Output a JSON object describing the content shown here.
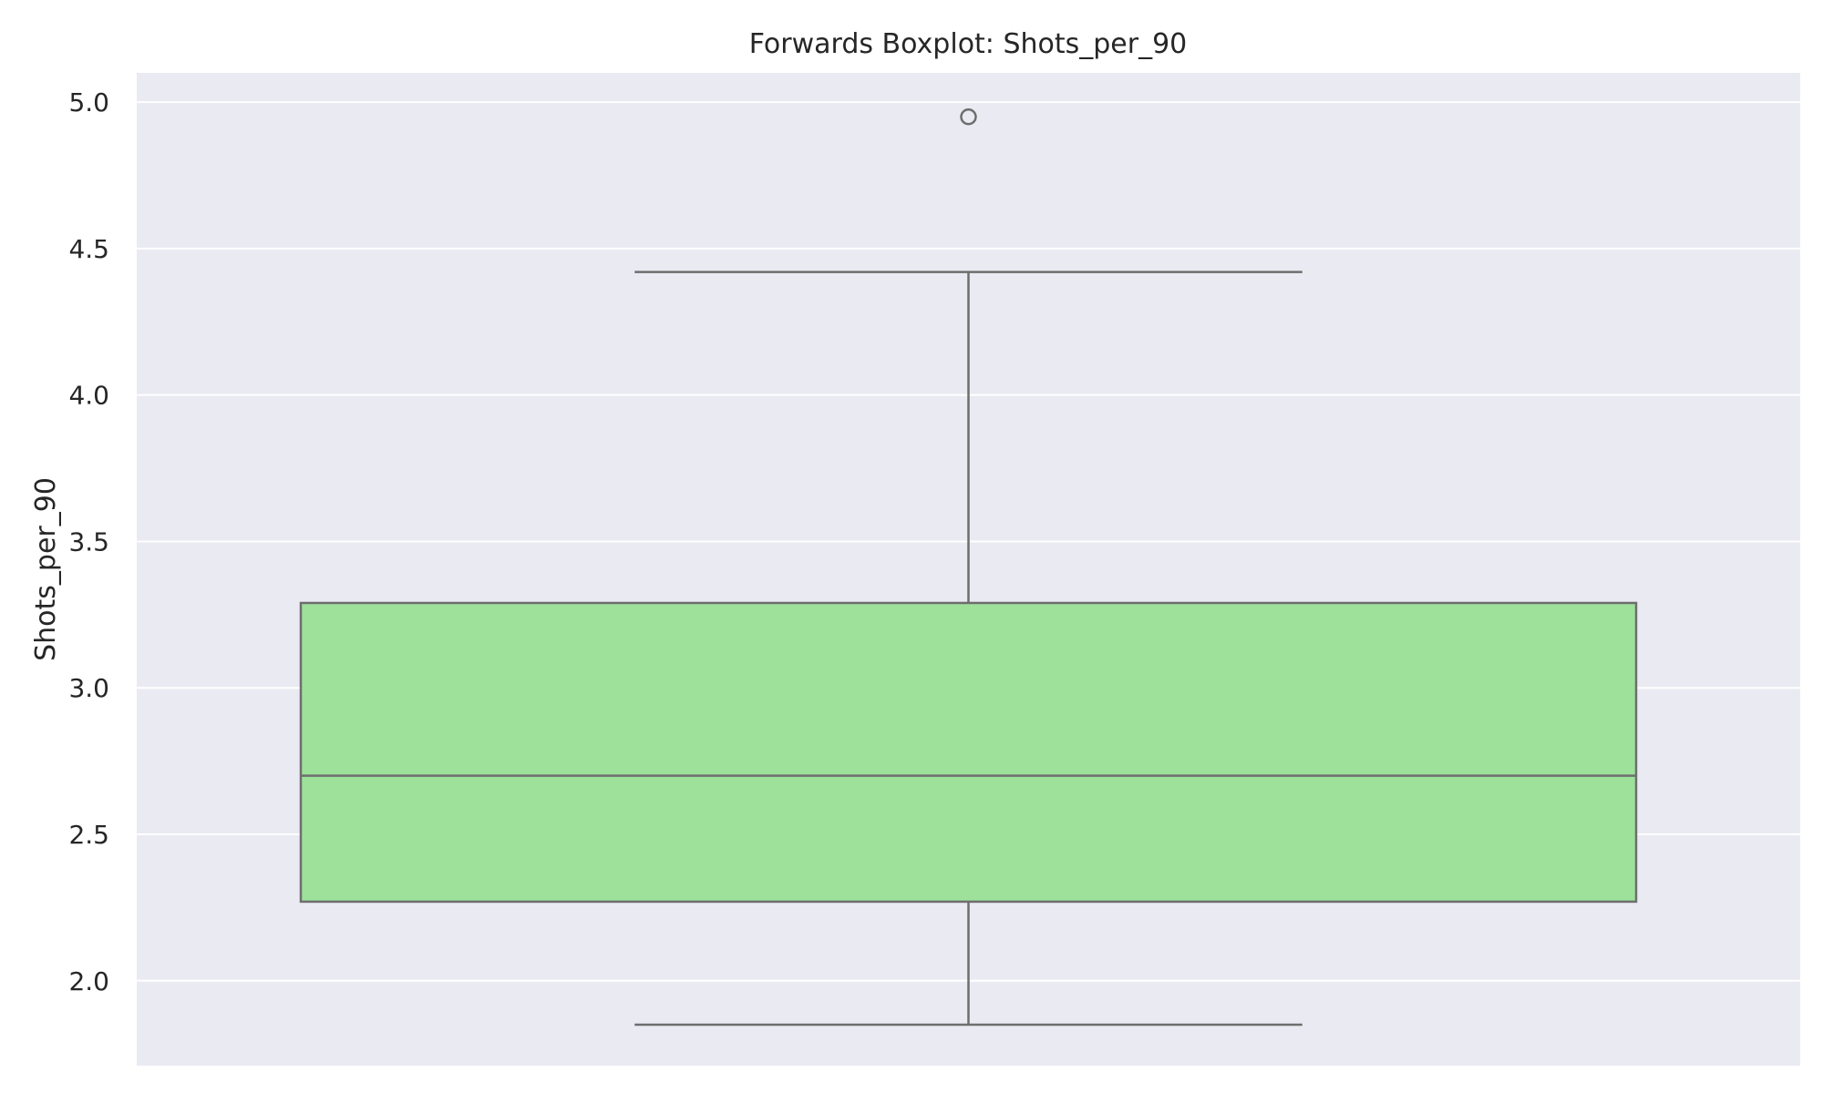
{
  "chart_data": {
    "type": "boxplot",
    "title": "Forwards Boxplot: Shots_per_90",
    "xlabel": "",
    "ylabel": "Shots_per_90",
    "ylim": [
      1.71,
      5.1
    ],
    "yticks": [
      {
        "value": 2.0,
        "label": "2.0"
      },
      {
        "value": 2.5,
        "label": "2.5"
      },
      {
        "value": 3.0,
        "label": "3.0"
      },
      {
        "value": 3.5,
        "label": "3.5"
      },
      {
        "value": 4.0,
        "label": "4.0"
      },
      {
        "value": 4.5,
        "label": "4.5"
      },
      {
        "value": 5.0,
        "label": "5.0"
      }
    ],
    "grid": true,
    "box": {
      "whisker_low": 1.85,
      "q1": 2.27,
      "median": 2.7,
      "q3": 3.29,
      "whisker_high": 4.42,
      "outliers": [
        4.95
      ]
    },
    "colors": {
      "background": "#eaeaf2",
      "grid": "#ffffff",
      "box_fill": "#9de19b",
      "line": "#6e6e6e"
    }
  }
}
